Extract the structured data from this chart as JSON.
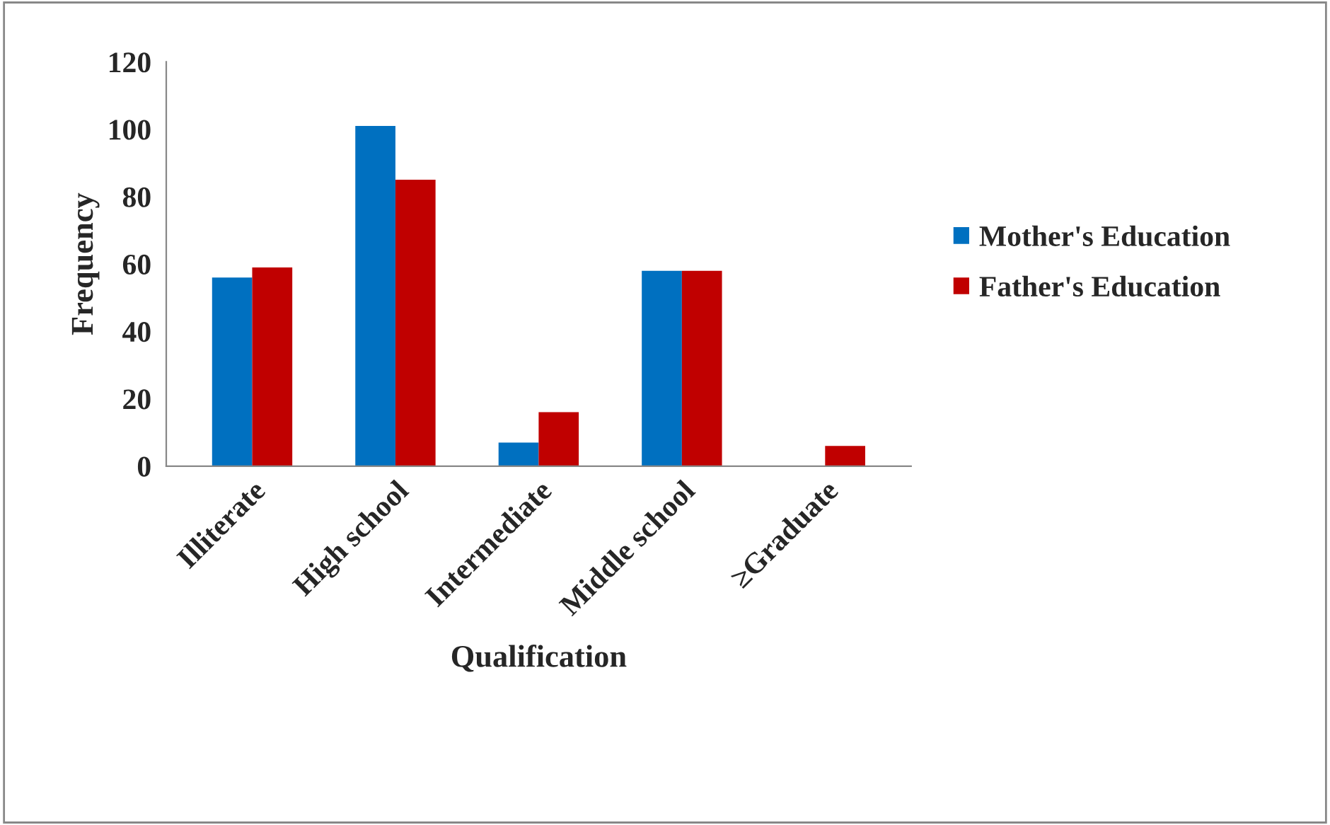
{
  "chart_data": {
    "type": "bar",
    "xlabel": "Qualification",
    "ylabel": "Frequency",
    "categories": [
      "Illiterate",
      "High school",
      "Intermediate",
      "Middle school",
      "≥Graduate"
    ],
    "series": [
      {
        "name": "Mother's Education",
        "color": "#0070c0",
        "values": [
          56,
          101,
          7,
          58,
          0
        ]
      },
      {
        "name": "Father's Education",
        "color": "#c00000",
        "values": [
          59,
          85,
          16,
          58,
          6
        ]
      }
    ],
    "ylim": [
      0,
      120
    ],
    "yticks": [
      0,
      20,
      40,
      60,
      80,
      100,
      120
    ],
    "grid": false,
    "legend": "right"
  }
}
